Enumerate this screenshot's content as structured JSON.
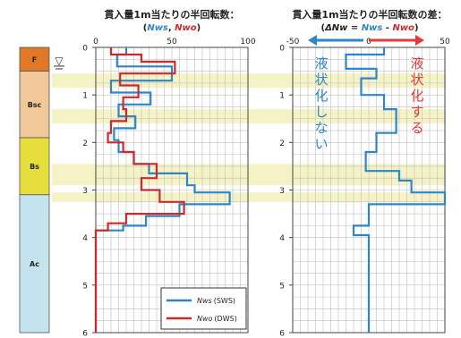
{
  "left_title": "貫入量1m当たりの半回転数：",
  "left_subtitle": [
    "(",
    "Nws",
    ", ",
    "Nwo",
    ")"
  ],
  "right_title": "貫入量1m当たりの半回転数の差：",
  "right_subtitle": [
    "(",
    "ΔNw",
    " = ",
    "Nws",
    " - ",
    "Nwo",
    ")"
  ],
  "annotation_left": "液状化しない",
  "annotation_right": "液状化する",
  "soil_column": [
    {
      "name": "F",
      "top": 0,
      "bottom": 0.5,
      "color": "#E07828"
    },
    {
      "name": "Bsc",
      "top": 0.5,
      "bottom": 1.9,
      "color": "#F1C89A"
    },
    {
      "name": "Bs",
      "top": 1.9,
      "bottom": 3.1,
      "color": "#E5DE3C"
    },
    {
      "name": "Ac",
      "top": 3.1,
      "bottom": 6.0,
      "color": "#C4E3EC"
    }
  ],
  "water_table_symbol": "▽",
  "water_table_depth": 0.3,
  "highlight_bands": [
    [
      0.55,
      0.85
    ],
    [
      1.3,
      1.6
    ],
    [
      2.45,
      2.9
    ],
    [
      3.05,
      3.25
    ]
  ],
  "colors": {
    "sws": "#2E86C8",
    "dws": "#CC2A2A",
    "arrow_blue": "#2E86C8",
    "arrow_red": "#E23A3A",
    "band": "#F5F2C6"
  },
  "chart_data": [
    {
      "type": "line",
      "title": "貫入量1m当たりの半回転数：(Nws, Nwo)",
      "xlim": [
        0,
        100
      ],
      "ylim": [
        0,
        6
      ],
      "x_ticks": [
        "0",
        "50",
        "100"
      ],
      "y_ticks": [
        "0",
        "1",
        "2",
        "3",
        "4",
        "5",
        "6"
      ],
      "grid": true,
      "legend": "bottom-right",
      "legend_entries": [
        {
          "name": "Nws",
          "suffix": "(SWS)"
        },
        {
          "name": "Nwo",
          "suffix": "(DWS)"
        }
      ],
      "series": [
        {
          "name": "Nws (SWS)",
          "points": [
            [
              20,
              0
            ],
            [
              20,
              0.15
            ],
            [
              14,
              0.15
            ],
            [
              14,
              0.4
            ],
            [
              50,
              0.4
            ],
            [
              50,
              0.7
            ],
            [
              10,
              0.7
            ],
            [
              10,
              0.95
            ],
            [
              36,
              0.95
            ],
            [
              36,
              1.2
            ],
            [
              15,
              1.2
            ],
            [
              15,
              1.45
            ],
            [
              26,
              1.45
            ],
            [
              26,
              1.7
            ],
            [
              12,
              1.7
            ],
            [
              12,
              1.95
            ],
            [
              15,
              1.95
            ],
            [
              15,
              2.2
            ],
            [
              25,
              2.2
            ],
            [
              25,
              2.45
            ],
            [
              35,
              2.45
            ],
            [
              35,
              2.65
            ],
            [
              60,
              2.65
            ],
            [
              60,
              2.9
            ],
            [
              65,
              2.9
            ],
            [
              65,
              3.05
            ],
            [
              88,
              3.05
            ],
            [
              88,
              3.3
            ],
            [
              55,
              3.3
            ],
            [
              55,
              3.55
            ],
            [
              33,
              3.55
            ],
            [
              33,
              3.75
            ],
            [
              18,
              3.75
            ],
            [
              18,
              3.85
            ],
            [
              0,
              3.85
            ],
            [
              0,
              6
            ]
          ]
        },
        {
          "name": "Nwo (DWS)",
          "points": [
            [
              10,
              0
            ],
            [
              10,
              0.15
            ],
            [
              30,
              0.15
            ],
            [
              30,
              0.3
            ],
            [
              52,
              0.3
            ],
            [
              52,
              0.55
            ],
            [
              16,
              0.55
            ],
            [
              16,
              0.8
            ],
            [
              28,
              0.8
            ],
            [
              28,
              1.05
            ],
            [
              18,
              1.05
            ],
            [
              18,
              1.3
            ],
            [
              20,
              1.3
            ],
            [
              20,
              1.55
            ],
            [
              10,
              1.55
            ],
            [
              10,
              1.8
            ],
            [
              8,
              1.8
            ],
            [
              8,
              2.0
            ],
            [
              18,
              2.0
            ],
            [
              18,
              2.2
            ],
            [
              25,
              2.2
            ],
            [
              25,
              2.45
            ],
            [
              40,
              2.45
            ],
            [
              40,
              2.75
            ],
            [
              30,
              2.75
            ],
            [
              30,
              3.0
            ],
            [
              42,
              3.0
            ],
            [
              42,
              3.25
            ],
            [
              58,
              3.25
            ],
            [
              58,
              3.5
            ],
            [
              20,
              3.5
            ],
            [
              20,
              3.7
            ],
            [
              8,
              3.7
            ],
            [
              8,
              3.85
            ],
            [
              0,
              3.85
            ],
            [
              0,
              6
            ]
          ]
        }
      ]
    },
    {
      "type": "line",
      "title": "貫入量1m当たりの半回転数の差：(ΔNw = Nws - Nwo)",
      "xlim": [
        -50,
        50
      ],
      "ylim": [
        0,
        6
      ],
      "x_ticks": [
        "-50",
        "0",
        "50"
      ],
      "y_ticks": [
        "0",
        "1",
        "2",
        "3",
        "4",
        "5",
        "6"
      ],
      "grid": true,
      "series": [
        {
          "name": "ΔNw",
          "points": [
            [
              10,
              0
            ],
            [
              10,
              0.15
            ],
            [
              -15,
              0.15
            ],
            [
              -15,
              0.45
            ],
            [
              5,
              0.45
            ],
            [
              5,
              0.65
            ],
            [
              -5,
              0.65
            ],
            [
              -5,
              1.0
            ],
            [
              10,
              1.0
            ],
            [
              10,
              1.3
            ],
            [
              18,
              1.3
            ],
            [
              18,
              1.8
            ],
            [
              5,
              1.8
            ],
            [
              5,
              2.2
            ],
            [
              -2,
              2.2
            ],
            [
              -2,
              2.6
            ],
            [
              20,
              2.6
            ],
            [
              20,
              2.8
            ],
            [
              28,
              2.8
            ],
            [
              28,
              3.05
            ],
            [
              50,
              3.05
            ],
            [
              50,
              3.3
            ],
            [
              0,
              3.3
            ],
            [
              0,
              3.75
            ],
            [
              -10,
              3.75
            ],
            [
              -10,
              3.95
            ],
            [
              0,
              3.95
            ],
            [
              0,
              6
            ]
          ]
        }
      ]
    }
  ]
}
